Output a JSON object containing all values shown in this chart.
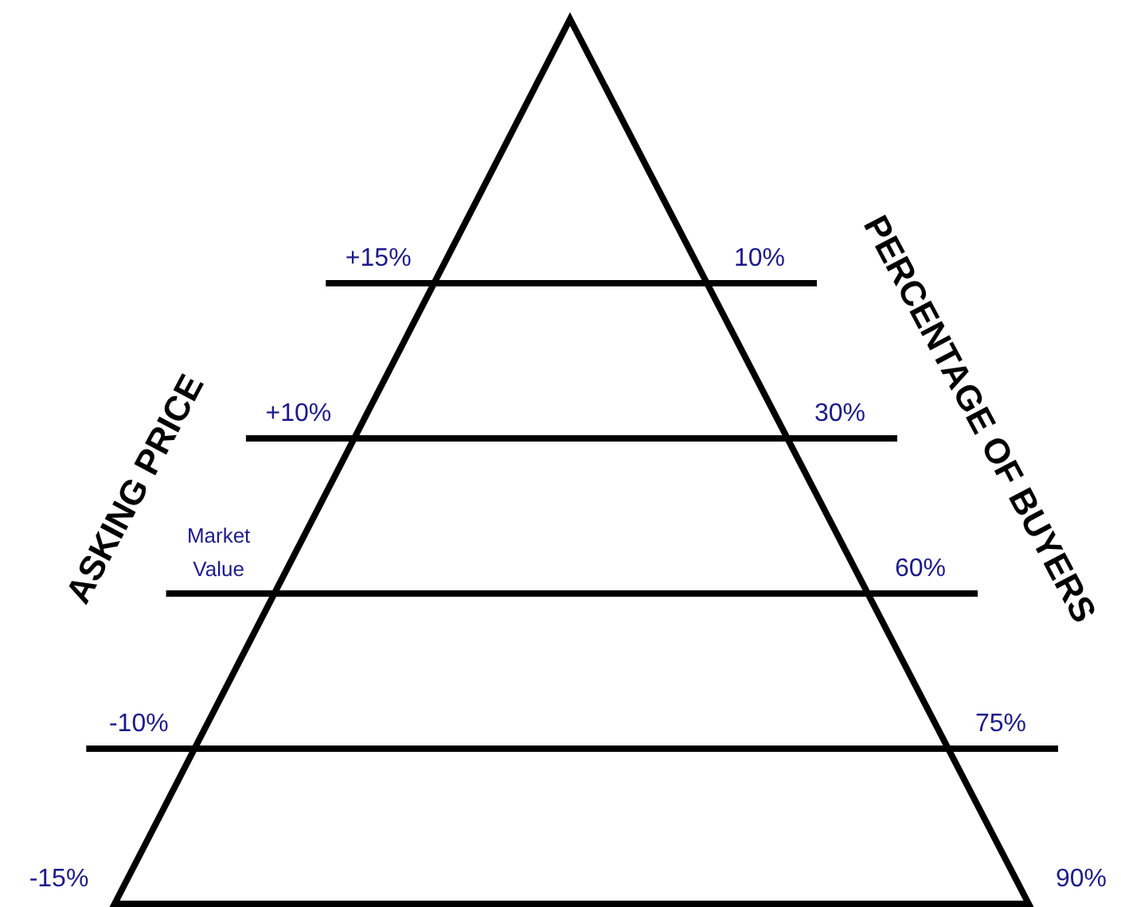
{
  "chart_data": {
    "type": "other",
    "ylabel": "ASKING PRICE",
    "y2label": "PERCENTAGE OF BUYERS",
    "categories": [
      "+15%",
      "+10%",
      "Market Value",
      "-10%",
      "-15%"
    ],
    "values": [
      10,
      30,
      60,
      75,
      90
    ],
    "value_labels": [
      "10%",
      "30%",
      "60%",
      "75%",
      "90%"
    ],
    "color": "#000000"
  }
}
